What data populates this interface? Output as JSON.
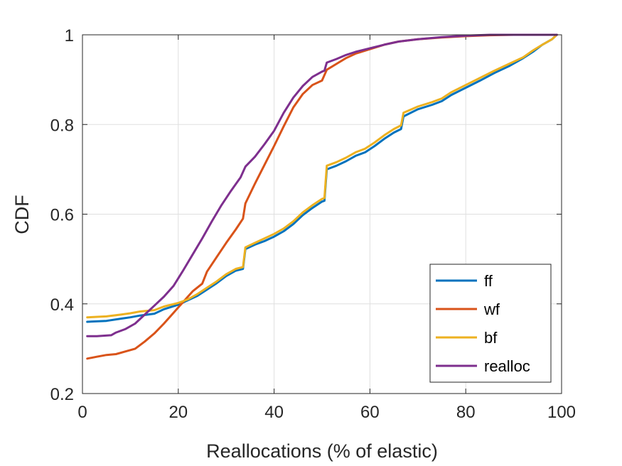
{
  "chart_data": {
    "type": "line",
    "xlabel": "Reallocations (% of elastic)",
    "ylabel": "CDF",
    "xlim": [
      0,
      100
    ],
    "ylim": [
      0.2,
      1
    ],
    "xticks": [
      0,
      20,
      40,
      60,
      80,
      100
    ],
    "yticks": [
      0.2,
      0.4,
      0.6,
      0.8,
      1
    ],
    "ytick_labels": [
      "0.2",
      "0.4",
      "0.6",
      "0.8",
      "1"
    ],
    "grid": true,
    "legend_position": "bottom-right",
    "series": [
      {
        "name": "ff",
        "color": "#0072BD",
        "x": [
          1,
          5,
          8,
          10,
          12,
          15,
          17,
          20,
          22,
          24,
          26,
          28,
          30,
          32,
          33.5,
          34,
          36,
          38,
          40,
          42,
          44,
          46,
          48,
          50,
          50.5,
          51,
          53,
          55,
          57,
          59,
          61,
          63,
          65,
          66.5,
          67,
          70,
          73,
          75,
          77,
          80,
          83,
          86,
          89,
          92,
          94,
          96,
          98,
          99
        ],
        "y": [
          0.36,
          0.362,
          0.367,
          0.37,
          0.374,
          0.378,
          0.388,
          0.398,
          0.408,
          0.418,
          0.432,
          0.446,
          0.462,
          0.474,
          0.478,
          0.522,
          0.532,
          0.54,
          0.55,
          0.562,
          0.578,
          0.598,
          0.614,
          0.628,
          0.63,
          0.7,
          0.708,
          0.718,
          0.73,
          0.738,
          0.752,
          0.768,
          0.782,
          0.79,
          0.818,
          0.834,
          0.844,
          0.852,
          0.866,
          0.882,
          0.898,
          0.915,
          0.93,
          0.948,
          0.962,
          0.978,
          0.99,
          1.0
        ]
      },
      {
        "name": "wf",
        "color": "#D95319",
        "x": [
          1,
          3,
          5,
          7,
          9,
          11,
          13,
          15,
          17,
          19,
          21,
          23,
          25,
          26,
          28,
          30,
          32,
          33.5,
          34,
          36,
          38,
          40,
          42,
          44,
          46,
          48,
          50,
          51,
          53,
          55,
          57,
          60,
          63,
          66,
          70,
          75,
          80,
          85,
          90,
          95,
          99
        ],
        "y": [
          0.278,
          0.282,
          0.286,
          0.288,
          0.294,
          0.3,
          0.316,
          0.334,
          0.356,
          0.38,
          0.404,
          0.428,
          0.445,
          0.472,
          0.504,
          0.536,
          0.566,
          0.59,
          0.624,
          0.668,
          0.71,
          0.752,
          0.796,
          0.838,
          0.868,
          0.888,
          0.898,
          0.922,
          0.935,
          0.948,
          0.958,
          0.968,
          0.978,
          0.985,
          0.99,
          0.994,
          0.997,
          0.999,
          1.0,
          1.0,
          1.0
        ]
      },
      {
        "name": "bf",
        "color": "#EDB120",
        "x": [
          1,
          5,
          8,
          10,
          12,
          15,
          17,
          20,
          22,
          24,
          26,
          28,
          30,
          32,
          33.5,
          34,
          36,
          38,
          40,
          42,
          44,
          46,
          48,
          50,
          50.5,
          51,
          53,
          55,
          57,
          59,
          61,
          63,
          65,
          66.5,
          67,
          70,
          73,
          75,
          77,
          80,
          83,
          86,
          89,
          92,
          94,
          96,
          98,
          99
        ],
        "y": [
          0.37,
          0.372,
          0.376,
          0.379,
          0.383,
          0.386,
          0.394,
          0.402,
          0.41,
          0.422,
          0.436,
          0.45,
          0.466,
          0.478,
          0.482,
          0.526,
          0.536,
          0.546,
          0.556,
          0.568,
          0.584,
          0.604,
          0.62,
          0.634,
          0.636,
          0.708,
          0.716,
          0.726,
          0.738,
          0.746,
          0.76,
          0.776,
          0.79,
          0.798,
          0.826,
          0.84,
          0.85,
          0.858,
          0.872,
          0.888,
          0.904,
          0.92,
          0.935,
          0.95,
          0.965,
          0.978,
          0.99,
          1.0
        ]
      },
      {
        "name": "realloc",
        "color": "#7E2F8E",
        "x": [
          1,
          3,
          6,
          7,
          9,
          11,
          13,
          15,
          17,
          19,
          21,
          23,
          25,
          27,
          29,
          31,
          33,
          34,
          36,
          38,
          40,
          42,
          44,
          46,
          48,
          50,
          50.5,
          51,
          53,
          55,
          57,
          60,
          63,
          66,
          70,
          75,
          80,
          85,
          90,
          95,
          99
        ],
        "y": [
          0.328,
          0.328,
          0.33,
          0.336,
          0.344,
          0.356,
          0.376,
          0.396,
          0.416,
          0.44,
          0.474,
          0.51,
          0.546,
          0.584,
          0.62,
          0.652,
          0.682,
          0.706,
          0.728,
          0.756,
          0.786,
          0.826,
          0.86,
          0.886,
          0.906,
          0.918,
          0.92,
          0.938,
          0.946,
          0.955,
          0.962,
          0.97,
          0.978,
          0.985,
          0.99,
          0.995,
          0.998,
          1.0,
          1.0,
          1.0,
          1.0
        ]
      }
    ]
  }
}
